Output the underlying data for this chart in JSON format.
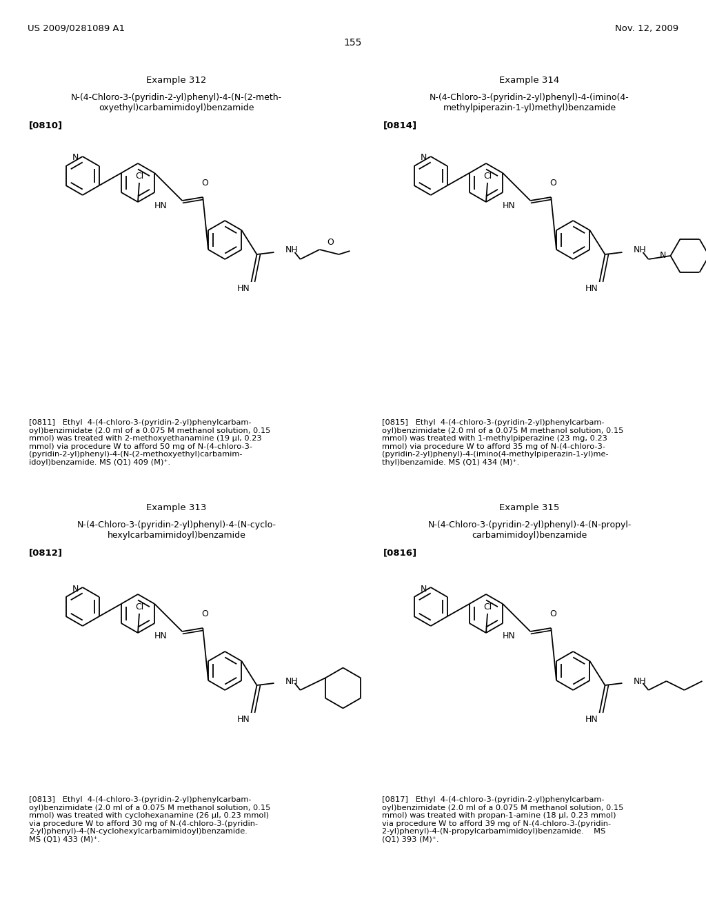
{
  "page_header_left": "US 2009/0281089 A1",
  "page_header_right": "Nov. 12, 2009",
  "page_number": "155",
  "background_color": "#ffffff",
  "text_color": "#000000",
  "ex312_title": "Example 312",
  "ex312_name": "N-(4-Chloro-3-(pyridin-2-yl)phenyl)-4-(N-(2-meth-\noxyethyl)carbamimidoyl)benzamide",
  "ex312_tag": "[0810]",
  "ex314_title": "Example 314",
  "ex314_name": "N-(4-Chloro-3-(pyridin-2-yl)phenyl)-4-(imino(4-\nmethylpiperazin-1-yl)methyl)benzamide",
  "ex314_tag": "[0814]",
  "ex313_title": "Example 313",
  "ex313_name": "N-(4-Chloro-3-(pyridin-2-yl)phenyl)-4-(N-cyclo-\nhexylcarbamimidoyl)benzamide",
  "ex313_tag": "[0812]",
  "ex315_title": "Example 315",
  "ex315_name": "N-(4-Chloro-3-(pyridin-2-yl)phenyl)-4-(N-propyl-\ncarbamimidoyl)benzamide",
  "ex315_tag": "[0816]",
  "para_0811": "[0811]   Ethyl  4-(4-chloro-3-(pyridin-2-yl)phenylcarbam-\noyl)benzimidate (2.0 ml of a 0.075 M methanol solution, 0.15\nmmol) was treated with 2-methoxyethanamine (19 μl, 0.23\nmmol) via procedure W to afford 50 mg of N-(4-chloro-3-\n(pyridin-2-yl)phenyl)-4-(N-(2-methoxyethyl)carbamim-\nidoyl)benzamide. MS (Q1) 409 (M)⁺.",
  "para_0815": "[0815]   Ethyl  4-(4-chloro-3-(pyridin-2-yl)phenylcarbam-\noyl)benzimidate (2.0 ml of a 0.075 M methanol solution, 0.15\nmmol) was treated with 1-methylpiperazine (23 mg, 0.23\nmmol) via procedure W to afford 35 mg of N-(4-chloro-3-\n(pyridin-2-yl)phenyl)-4-(imino(4-methylpiperazin-1-yl)me-\nthyl)benzamide. MS (Q1) 434 (M)⁺.",
  "para_0813": "[0813]   Ethyl  4-(4-chloro-3-(pyridin-2-yl)phenylcarbam-\noyl)benzimidate (2.0 ml of a 0.075 M methanol solution, 0.15\nmmol) was treated with cyclohexanamine (26 μl, 0.23 mmol)\nvia procedure W to afford 30 mg of N-(4-chloro-3-(pyridin-\n2-yl)phenyl)-4-(N-cyclohexylcarbamimidoyl)benzamide.\nMS (Q1) 433 (M)⁺.",
  "para_0817": "[0817]   Ethyl  4-(4-chloro-3-(pyridin-2-yl)phenylcarbam-\noyl)benzimidate (2.0 ml of a 0.075 M methanol solution, 0.15\nmmol) was treated with propan-1-amine (18 μl, 0.23 mmol)\nvia procedure W to afford 39 mg of N-(4-chloro-3-(pyridin-\n2-yl)phenyl)-4-(N-propylcarbamimidoyl)benzamide.    MS\n(Q1) 393 (M)⁺."
}
